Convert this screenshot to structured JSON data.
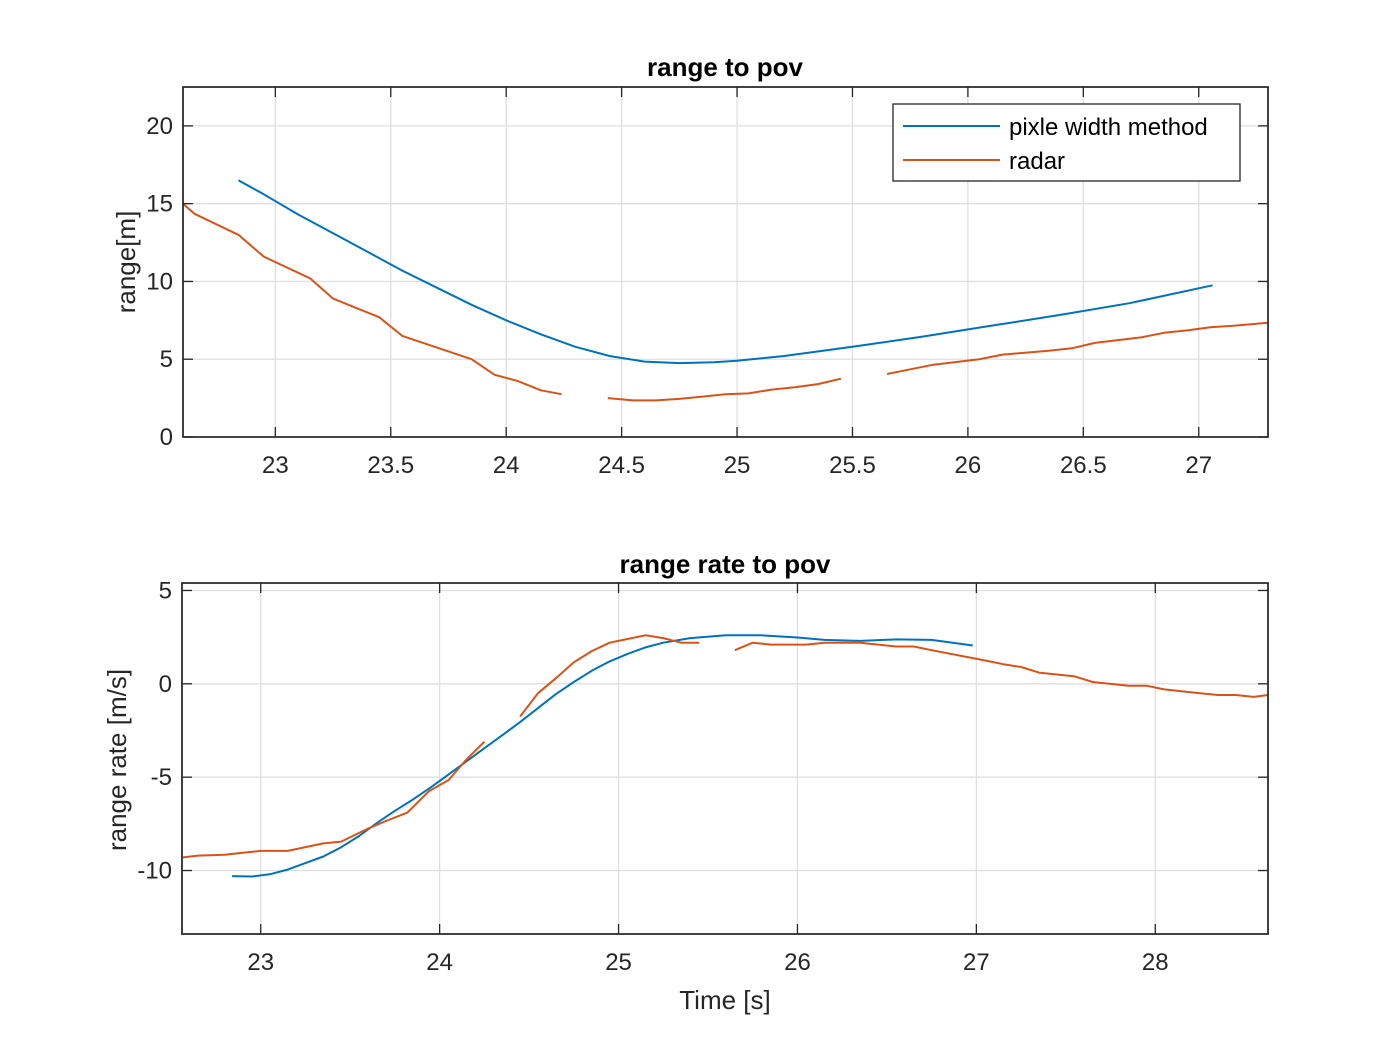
{
  "chart_data": [
    {
      "type": "line",
      "title": "range to pov",
      "xlabel": "",
      "ylabel": "range[m]",
      "xlim": [
        22.6,
        27.3
      ],
      "ylim": [
        0,
        22.5
      ],
      "xticks": [
        23,
        23.5,
        24,
        24.5,
        25,
        25.5,
        26,
        26.5,
        27
      ],
      "xtick_labels": [
        "23",
        "23.5",
        "24",
        "24.5",
        "25",
        "25.5",
        "26",
        "26.5",
        "27"
      ],
      "yticks": [
        0,
        5,
        10,
        15,
        20
      ],
      "ytick_labels": [
        "0",
        "5",
        "10",
        "15",
        "20"
      ],
      "grid": true,
      "legend": "top-right",
      "series": [
        {
          "name": "pixle width method",
          "color": "#0072BD",
          "segments": [
            [
              [
                22.84,
                16.5
              ],
              [
                22.95,
                15.6
              ],
              [
                23.1,
                14.3
              ],
              [
                23.25,
                13.1
              ],
              [
                23.4,
                11.9
              ],
              [
                23.55,
                10.7
              ],
              [
                23.7,
                9.6
              ],
              [
                23.85,
                8.5
              ],
              [
                24.0,
                7.5
              ],
              [
                24.15,
                6.6
              ],
              [
                24.3,
                5.8
              ],
              [
                24.45,
                5.2
              ],
              [
                24.6,
                4.85
              ],
              [
                24.75,
                4.75
              ],
              [
                24.9,
                4.8
              ],
              [
                25.0,
                4.9
              ],
              [
                25.2,
                5.2
              ],
              [
                25.5,
                5.8
              ],
              [
                25.8,
                6.45
              ],
              [
                26.1,
                7.15
              ],
              [
                26.4,
                7.85
              ],
              [
                26.7,
                8.6
              ],
              [
                27.06,
                9.75
              ]
            ]
          ]
        },
        {
          "name": "radar",
          "color": "#D95319",
          "segments": [
            [
              [
                22.6,
                15.0
              ],
              [
                22.65,
                14.35
              ],
              [
                22.84,
                13.0
              ],
              [
                22.95,
                11.6
              ],
              [
                23.15,
                10.2
              ],
              [
                23.25,
                8.9
              ],
              [
                23.35,
                8.3
              ],
              [
                23.45,
                7.7
              ],
              [
                23.55,
                6.5
              ],
              [
                23.65,
                6.0
              ],
              [
                23.75,
                5.5
              ],
              [
                23.85,
                5.0
              ],
              [
                23.95,
                4.0
              ],
              [
                24.05,
                3.6
              ],
              [
                24.15,
                3.0
              ],
              [
                24.24,
                2.75
              ]
            ],
            [
              [
                24.44,
                2.5
              ],
              [
                24.55,
                2.35
              ],
              [
                24.65,
                2.35
              ],
              [
                24.75,
                2.45
              ],
              [
                24.85,
                2.6
              ],
              [
                24.95,
                2.75
              ],
              [
                25.05,
                2.8
              ],
              [
                25.15,
                3.05
              ],
              [
                25.25,
                3.2
              ],
              [
                25.35,
                3.4
              ],
              [
                25.45,
                3.75
              ]
            ],
            [
              [
                25.65,
                4.05
              ],
              [
                25.75,
                4.35
              ],
              [
                25.85,
                4.65
              ],
              [
                26.05,
                5.0
              ],
              [
                26.15,
                5.3
              ],
              [
                26.35,
                5.55
              ],
              [
                26.45,
                5.7
              ],
              [
                26.55,
                6.05
              ],
              [
                26.75,
                6.4
              ],
              [
                26.85,
                6.7
              ],
              [
                26.95,
                6.85
              ],
              [
                27.05,
                7.05
              ],
              [
                27.15,
                7.15
              ],
              [
                27.3,
                7.35
              ]
            ]
          ]
        }
      ]
    },
    {
      "type": "line",
      "title": "range rate to pov",
      "xlabel": "Time [s]",
      "ylabel": "range rate [m/s]",
      "xlim": [
        22.56,
        28.63
      ],
      "ylim": [
        -13.4,
        5.4
      ],
      "xticks": [
        23,
        24,
        25,
        26,
        27,
        28
      ],
      "xtick_labels": [
        "23",
        "24",
        "25",
        "26",
        "27",
        "28"
      ],
      "yticks": [
        -10,
        -5,
        0,
        5
      ],
      "ytick_labels": [
        "-10",
        "-5",
        "0",
        "5"
      ],
      "grid": true,
      "series": [
        {
          "name": "pixle width method",
          "color": "#0072BD",
          "segments": [
            [
              [
                22.84,
                -10.3
              ],
              [
                22.95,
                -10.32
              ],
              [
                23.05,
                -10.2
              ],
              [
                23.15,
                -9.95
              ],
              [
                23.25,
                -9.6
              ],
              [
                23.35,
                -9.25
              ],
              [
                23.45,
                -8.75
              ],
              [
                23.55,
                -8.15
              ],
              [
                23.65,
                -7.45
              ],
              [
                23.75,
                -6.8
              ],
              [
                23.85,
                -6.2
              ],
              [
                23.95,
                -5.55
              ],
              [
                24.05,
                -4.85
              ],
              [
                24.15,
                -4.15
              ],
              [
                24.25,
                -3.45
              ],
              [
                24.35,
                -2.75
              ],
              [
                24.45,
                -2.05
              ],
              [
                24.55,
                -1.3
              ],
              [
                24.65,
                -0.55
              ],
              [
                24.75,
                0.1
              ],
              [
                24.85,
                0.7
              ],
              [
                24.95,
                1.2
              ],
              [
                25.05,
                1.6
              ],
              [
                25.15,
                1.95
              ],
              [
                25.25,
                2.2
              ],
              [
                25.4,
                2.45
              ],
              [
                25.6,
                2.6
              ],
              [
                25.8,
                2.6
              ],
              [
                26.0,
                2.48
              ],
              [
                26.15,
                2.35
              ],
              [
                26.35,
                2.3
              ],
              [
                26.55,
                2.38
              ],
              [
                26.75,
                2.35
              ],
              [
                26.98,
                2.05
              ]
            ]
          ]
        },
        {
          "name": "radar",
          "color": "#D95319",
          "segments": [
            [
              [
                22.56,
                -9.3
              ],
              [
                22.65,
                -9.2
              ],
              [
                22.8,
                -9.15
              ],
              [
                22.9,
                -9.05
              ],
              [
                23.0,
                -8.95
              ],
              [
                23.15,
                -8.95
              ],
              [
                23.35,
                -8.55
              ],
              [
                23.45,
                -8.45
              ],
              [
                23.6,
                -7.75
              ],
              [
                23.7,
                -7.35
              ],
              [
                23.82,
                -6.9
              ],
              [
                23.94,
                -5.75
              ],
              [
                24.05,
                -5.15
              ],
              [
                24.15,
                -4.05
              ],
              [
                24.25,
                -3.1
              ]
            ],
            [
              [
                24.45,
                -1.75
              ],
              [
                24.55,
                -0.5
              ],
              [
                24.65,
                0.3
              ],
              [
                24.75,
                1.15
              ],
              [
                24.85,
                1.75
              ],
              [
                24.95,
                2.2
              ],
              [
                25.05,
                2.4
              ],
              [
                25.15,
                2.6
              ],
              [
                25.25,
                2.45
              ],
              [
                25.35,
                2.2
              ],
              [
                25.45,
                2.2
              ]
            ],
            [
              [
                25.65,
                1.8
              ],
              [
                25.75,
                2.2
              ],
              [
                25.85,
                2.1
              ],
              [
                26.05,
                2.1
              ],
              [
                26.15,
                2.2
              ],
              [
                26.35,
                2.2
              ],
              [
                26.55,
                2.0
              ],
              [
                26.65,
                2.0
              ],
              [
                26.75,
                1.8
              ],
              [
                27.05,
                1.25
              ],
              [
                27.15,
                1.05
              ],
              [
                27.25,
                0.9
              ],
              [
                27.35,
                0.6
              ],
              [
                27.55,
                0.4
              ],
              [
                27.65,
                0.1
              ],
              [
                27.85,
                -0.1
              ],
              [
                27.95,
                -0.1
              ],
              [
                28.05,
                -0.3
              ],
              [
                28.25,
                -0.5
              ],
              [
                28.35,
                -0.6
              ],
              [
                28.45,
                -0.6
              ],
              [
                28.55,
                -0.7
              ],
              [
                28.63,
                -0.6
              ]
            ]
          ]
        }
      ]
    }
  ]
}
